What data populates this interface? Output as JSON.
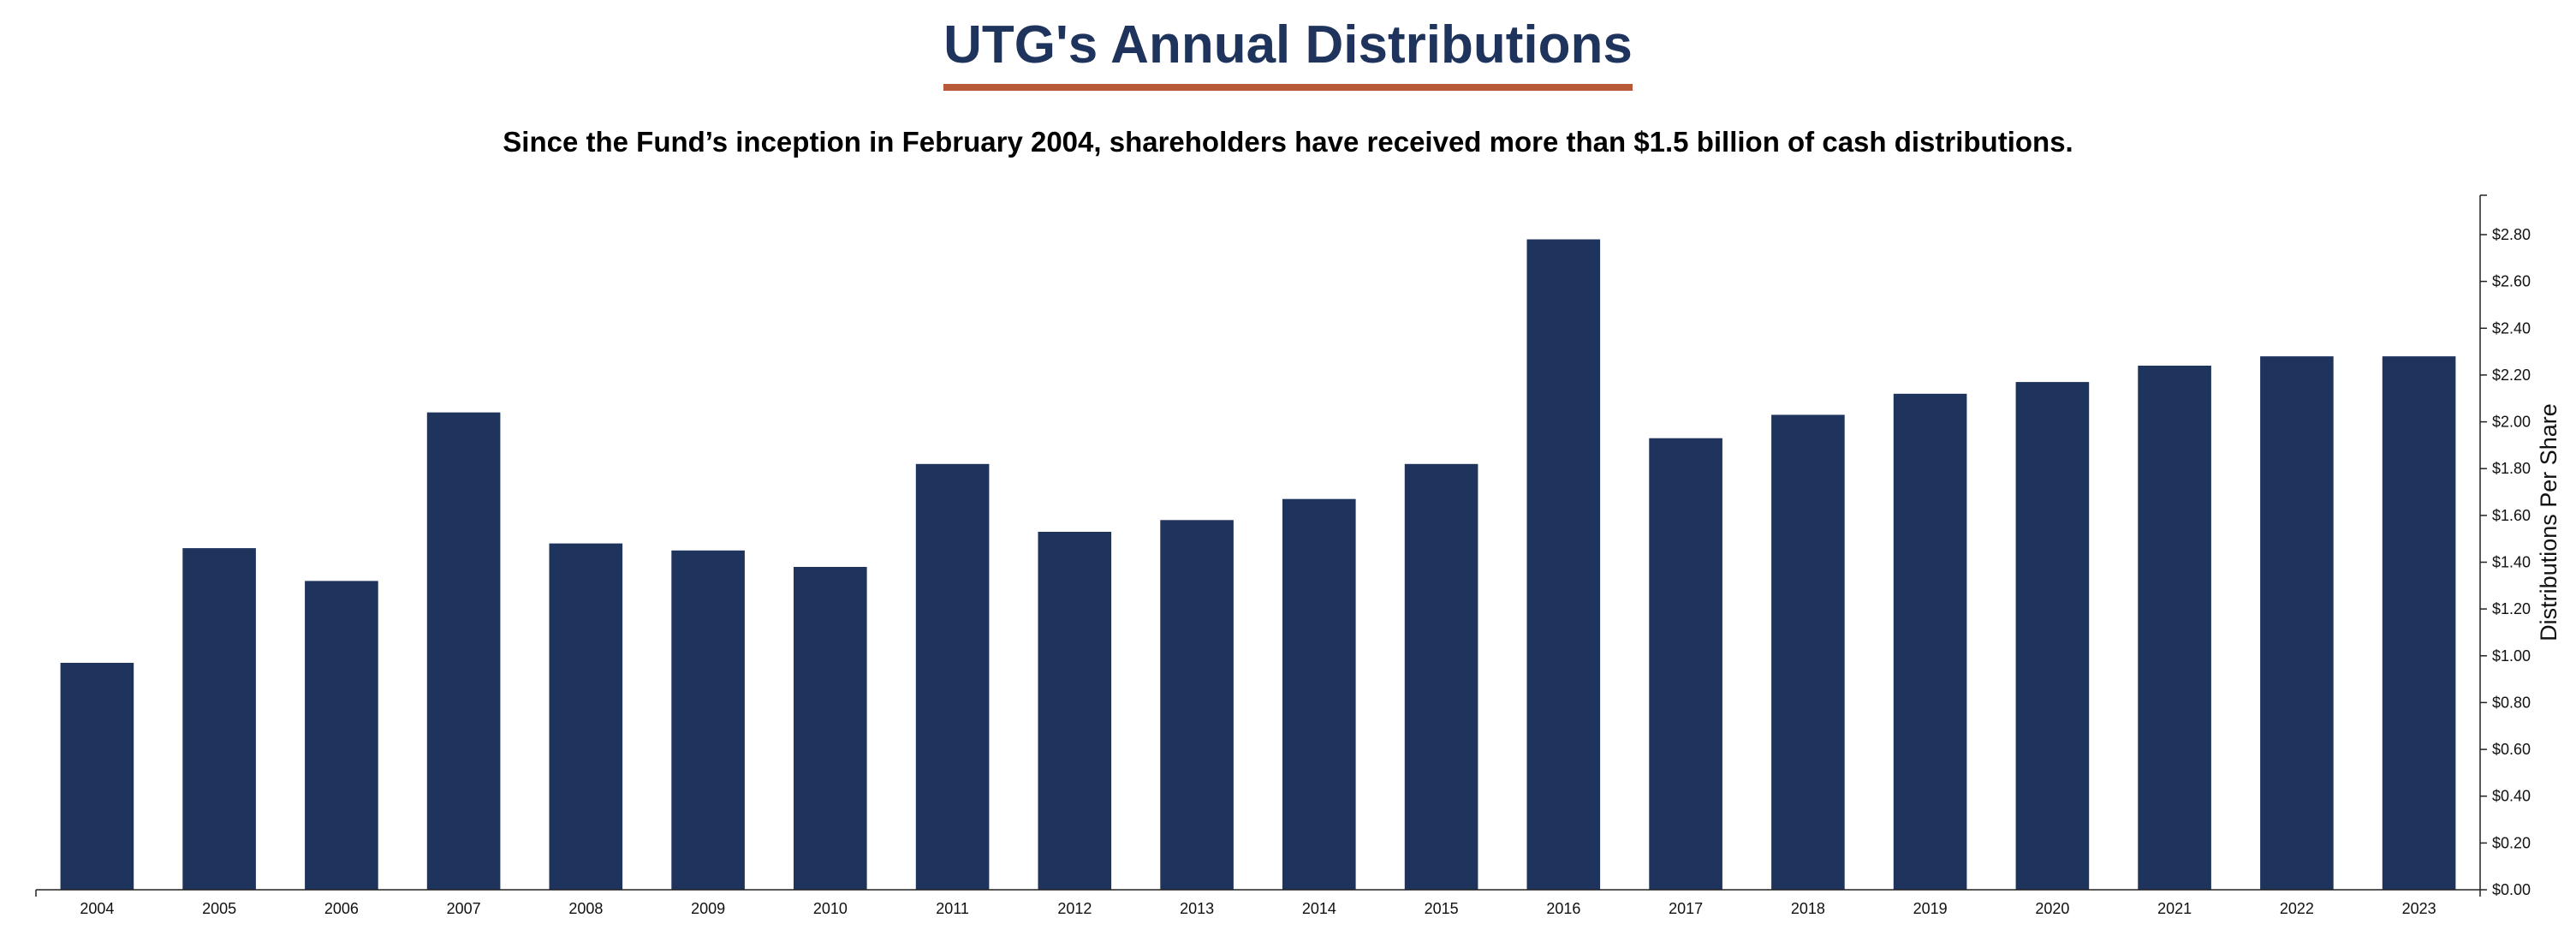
{
  "title": "UTG's Annual Distributions",
  "subtitle": "Since the Fund’s inception in February 2004, shareholders have received more than $1.5 billion of cash distributions.",
  "colors": {
    "title": "#1f345c",
    "title_underline": "#b85a38",
    "bar": "#1f345c",
    "axis": "#222222"
  },
  "chart_data": {
    "type": "bar",
    "title": "UTG's Annual Distributions",
    "subtitle": "Since the Fund’s inception in February 2004, shareholders have received more than $1.5 billion of cash distributions.",
    "xlabel": "",
    "ylabel": "Distributions Per Share",
    "ylim": [
      0,
      2.95
    ],
    "y_axis_position": "right",
    "grid": false,
    "legend": "none",
    "categories": [
      "2004",
      "2005",
      "2006",
      "2007",
      "2008",
      "2009",
      "2010",
      "2011",
      "2012",
      "2013",
      "2014",
      "2015",
      "2016",
      "2017",
      "2018",
      "2019",
      "2020",
      "2021",
      "2022",
      "2023"
    ],
    "values": [
      0.97,
      1.46,
      1.32,
      2.04,
      1.48,
      1.45,
      1.38,
      1.82,
      1.53,
      1.58,
      1.67,
      1.82,
      2.78,
      1.93,
      2.03,
      2.12,
      2.17,
      2.24,
      2.28,
      2.28
    ],
    "y_ticks": [
      0,
      0.2,
      0.4,
      0.6,
      0.8,
      1.0,
      1.2,
      1.4,
      1.6,
      1.8,
      2.0,
      2.2,
      2.4,
      2.6,
      2.8
    ],
    "y_tick_labels": [
      "$0.00",
      "$0.20",
      "$0.40",
      "$0.60",
      "$0.80",
      "$1.00",
      "$1.20",
      "$1.40",
      "$1.60",
      "$1.80",
      "$2.00",
      "$2.20",
      "$2.40",
      "$2.60",
      "$2.80"
    ]
  }
}
